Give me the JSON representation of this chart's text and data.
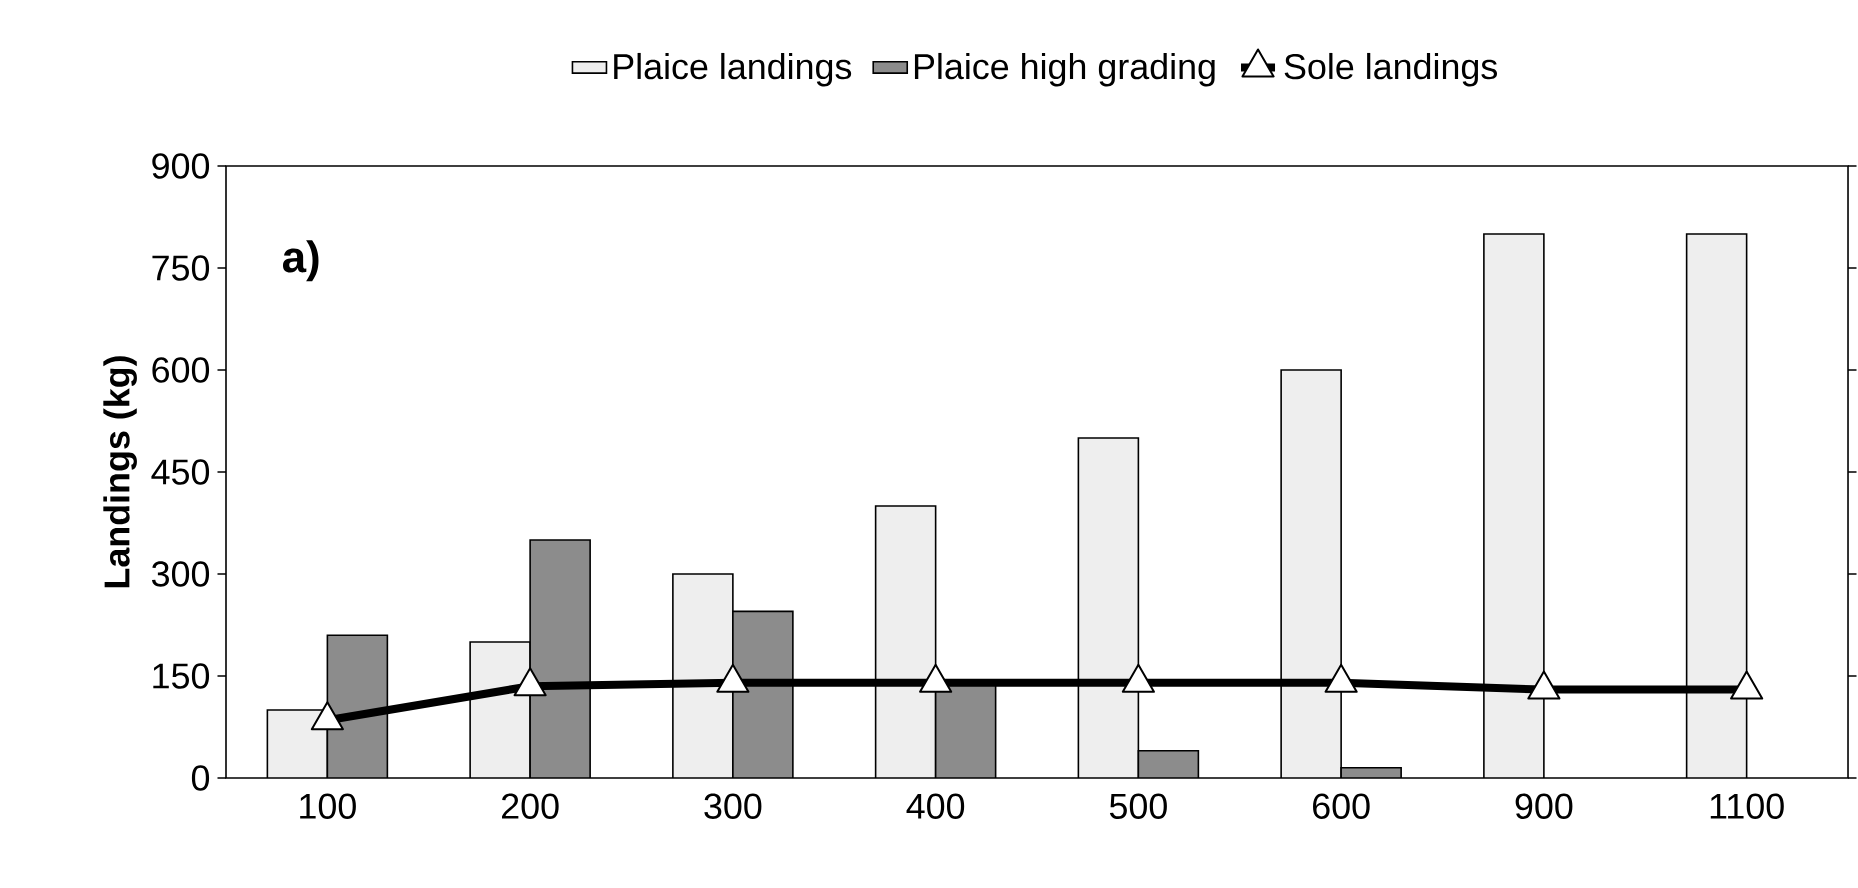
{
  "chart_data": {
    "type": "bar",
    "ylabel": "Landings (kg)",
    "annotations": [
      "a)"
    ],
    "categories": [
      "100",
      "200",
      "300",
      "400",
      "500",
      "600",
      "900",
      "1100"
    ],
    "series": [
      {
        "name": "Plaice landings",
        "color": "#eeeeee",
        "values": [
          100,
          200,
          300,
          400,
          500,
          600,
          800,
          800
        ]
      },
      {
        "name": "Plaice high grading",
        "color": "#8c8c8c",
        "values": [
          210,
          350,
          245,
          140,
          40,
          15,
          null,
          null
        ]
      },
      {
        "name": "Sole landings",
        "type": "line",
        "color": "#000000",
        "values": [
          85,
          135,
          140,
          140,
          140,
          140,
          130,
          130
        ]
      }
    ],
    "ylim": [
      0,
      900
    ],
    "yticks": [
      0,
      150,
      300,
      450,
      600,
      750,
      900
    ],
    "marker": "triangle",
    "legend": "top"
  }
}
